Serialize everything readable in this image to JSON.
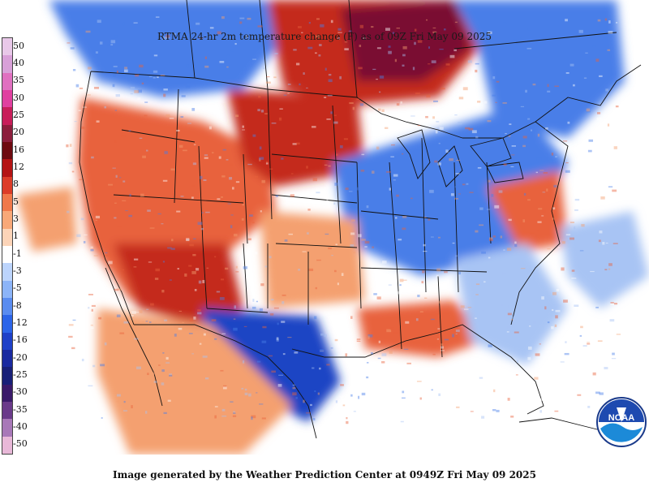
{
  "title": "RTMA 24-hr 2m temperature change (F) as of 09Z Fri May 09 2025",
  "footer": "Image generated by the Weather Prediction Center at 0949Z Fri May 09 2025",
  "logo": {
    "text": "NOAA",
    "icon": "noaa-logo-icon"
  },
  "legend": {
    "labels": [
      "50",
      "40",
      "35",
      "30",
      "25",
      "20",
      "16",
      "12",
      "8",
      "5",
      "3",
      "1",
      "-1",
      "-3",
      "-5",
      "-8",
      "-12",
      "-16",
      "-20",
      "-25",
      "-30",
      "-35",
      "-40",
      "-50"
    ],
    "colors": [
      "#e8c8e8",
      "#d8a0d8",
      "#e070c0",
      "#e040a0",
      "#c81e5a",
      "#8c1e3c",
      "#6e0a10",
      "#b41414",
      "#dc3c28",
      "#f0784a",
      "#f8a878",
      "#fcd4b8",
      "#ffffff",
      "#bcd4fc",
      "#8cb4f8",
      "#5a8cf0",
      "#2c64e8",
      "#1e40c8",
      "#1a2aa0",
      "#182078",
      "#3a1a6a",
      "#6a3a8a",
      "#a878b8",
      "#e8b8d8"
    ]
  },
  "colors": {
    "warm_strong": "#c42a1e",
    "warm": "#e8623c",
    "warm_light": "#f4a070",
    "cool_light": "#a8c4f4",
    "cool": "#4a7ee8",
    "cool_strong": "#1e44c4",
    "hot_extreme": "#7a1030",
    "boundary": "#111111"
  }
}
